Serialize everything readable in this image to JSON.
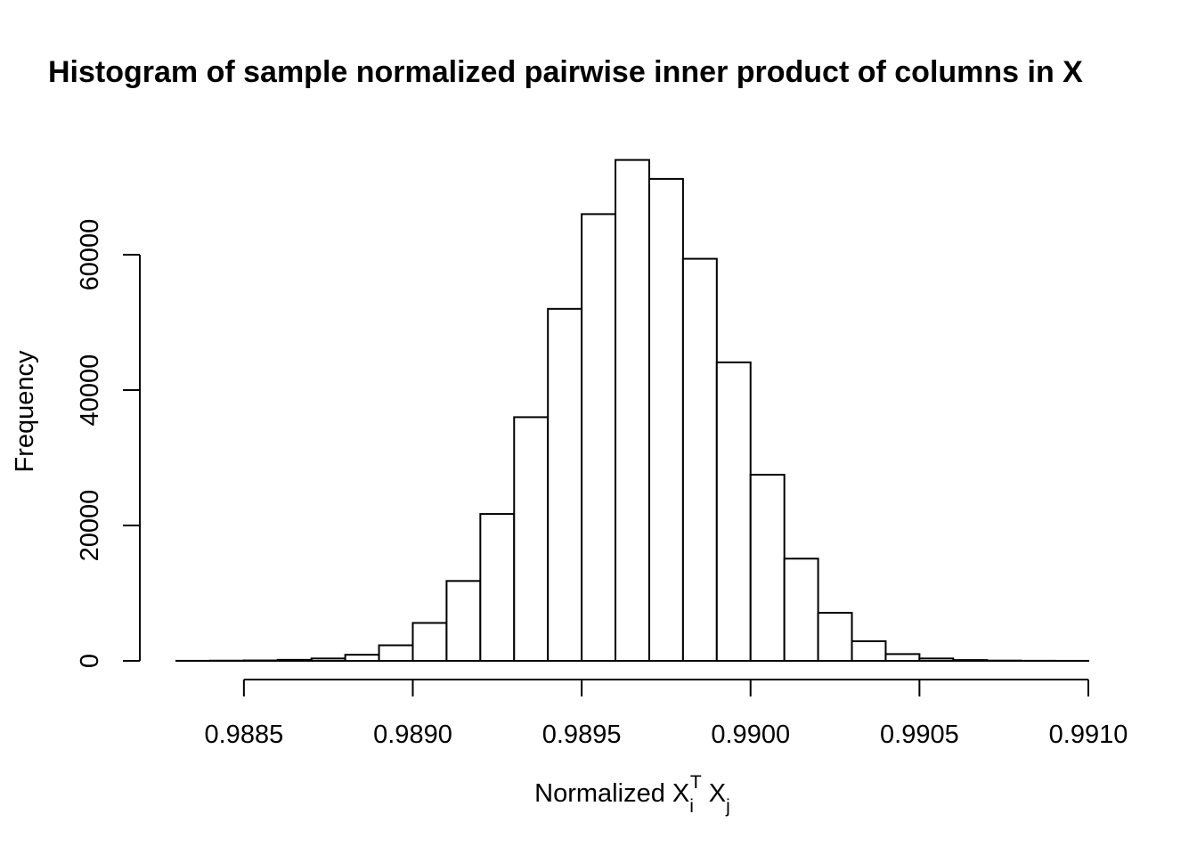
{
  "chart_data": {
    "type": "bar",
    "title": "Histogram of sample normalized pairwise inner product of columns in X",
    "xlabel": "Normalized X_i^T X_j",
    "xlabel_parts": {
      "prefix": "Normalized X",
      "sub1": "i",
      "sup1": "T",
      "mid": " X",
      "sub2": "j"
    },
    "ylabel": "Frequency",
    "xlim": [
      0.9883,
      0.991
    ],
    "ylim": [
      0,
      70000
    ],
    "x_ticks": [
      0.9885,
      0.989,
      0.9895,
      0.99,
      0.9905,
      0.991
    ],
    "x_tick_labels": [
      "0.9885",
      "0.9890",
      "0.9895",
      "0.9900",
      "0.9905",
      "0.9910"
    ],
    "y_ticks": [
      0,
      20000,
      40000,
      60000
    ],
    "y_tick_labels": [
      "0",
      "20000",
      "40000",
      "60000"
    ],
    "bin_width": 0.0001,
    "bins_start": [
      0.9883,
      0.9884,
      0.9885,
      0.9886,
      0.9887,
      0.9888,
      0.9889,
      0.989,
      0.9891,
      0.9892,
      0.9893,
      0.9894,
      0.9895,
      0.9896,
      0.9897,
      0.9898,
      0.9899,
      0.99,
      0.9901,
      0.9902,
      0.9903,
      0.9904,
      0.9905,
      0.9906,
      0.9907,
      0.9908,
      0.9909
    ],
    "values": [
      10,
      30,
      60,
      150,
      350,
      900,
      2300,
      5600,
      11800,
      21700,
      36000,
      52000,
      66000,
      74000,
      71200,
      59400,
      44100,
      27500,
      15100,
      7100,
      2900,
      1000,
      350,
      120,
      40,
      15,
      5
    ]
  }
}
